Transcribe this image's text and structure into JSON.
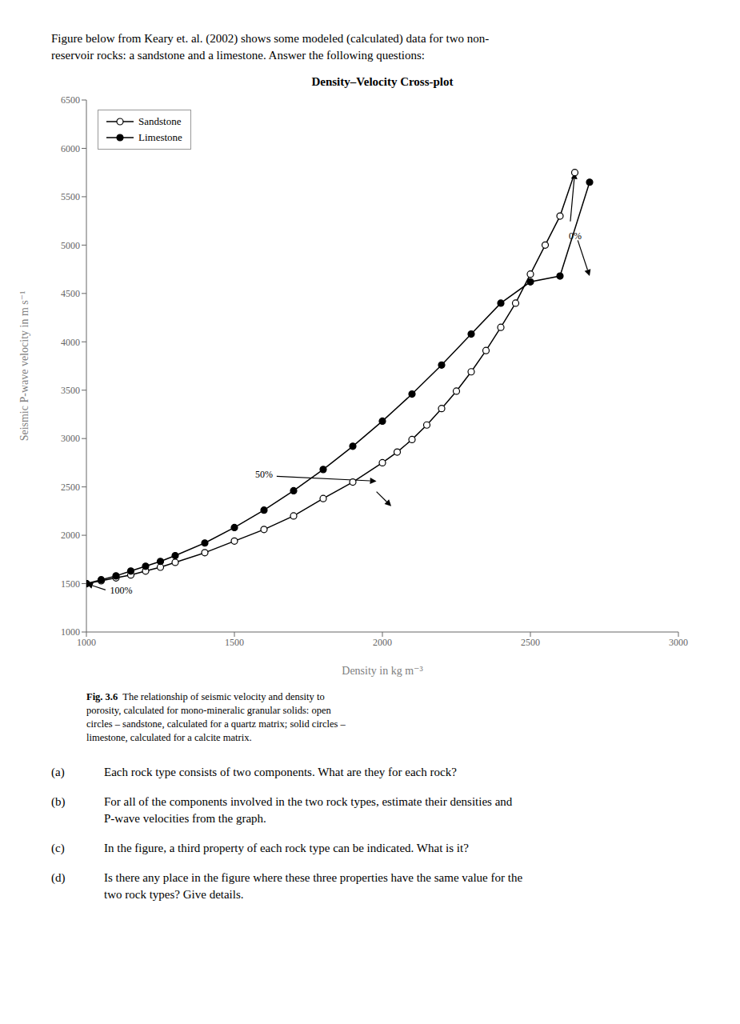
{
  "header_text": "Figure below from Keary et. al. (2002) shows some modeled (calculated) data for two non-\nreservoir rocks: a sandstone and a limestone. Answer the following questions:",
  "caption_bold": "Fig. 3.6",
  "caption": "  The relationship of seismic velocity and density to\nporosity, calculated for mono-mineralic granular solids: open\ncircles – sandstone, calculated for a quartz matrix; solid circles –\nlimestone, calculated for a calcite matrix.",
  "questions": [
    {
      "label": "(a)",
      "text": "Each rock type consists of two components. What are they for each rock?"
    },
    {
      "label": "(b)",
      "text": "For all of the components involved in the two rock types, estimate their densities and\nP-wave velocities from the graph."
    },
    {
      "label": "(c)",
      "text": "In the figure, a third property of each rock type can be indicated. What is it?"
    },
    {
      "label": "(d)",
      "text": "Is there any place in the figure where these three properties have the same value for the\ntwo rock types? Give details."
    }
  ],
  "chart_data": {
    "type": "line",
    "title": "Density–Velocity Cross-plot",
    "xlabel": "Density in kg m⁻³",
    "ylabel": "Seismic P-wave velocity in m s⁻¹",
    "xlim": [
      1000,
      3000
    ],
    "ylim": [
      1000,
      6500
    ],
    "xticks": [
      1000,
      1500,
      2000,
      2500,
      3000
    ],
    "yticks": [
      1000,
      1500,
      2000,
      2500,
      3000,
      3500,
      4000,
      4500,
      5000,
      5500,
      6000,
      6500
    ],
    "grid": false,
    "legend": "upper left",
    "series": [
      {
        "name": "Sandstone",
        "color": "#000000",
        "marker": "open_circle",
        "x": [
          1000,
          1050,
          1100,
          1150,
          1200,
          1250,
          1300,
          1400,
          1500,
          1600,
          1700,
          1800,
          1900,
          2000,
          2050,
          2100,
          2150,
          2200,
          2250,
          2300,
          2350,
          2400,
          2450,
          2500,
          2550,
          2600,
          2650
        ],
        "values": [
          1500,
          1530,
          1560,
          1590,
          1630,
          1670,
          1720,
          1820,
          1940,
          2060,
          2200,
          2380,
          2550,
          2750,
          2860,
          2990,
          3140,
          3310,
          3490,
          3690,
          3910,
          4150,
          4400,
          4700,
          5000,
          5300,
          5750
        ]
      },
      {
        "name": "Limestone",
        "color": "#000000",
        "marker": "filled_circle",
        "x": [
          1000,
          1050,
          1100,
          1150,
          1200,
          1250,
          1300,
          1400,
          1500,
          1600,
          1700,
          1800,
          1900,
          2000,
          2100,
          2200,
          2300,
          2400,
          2500,
          2600,
          2700
        ],
        "values": [
          1500,
          1540,
          1580,
          1630,
          1680,
          1730,
          1790,
          1920,
          2080,
          2260,
          2460,
          2680,
          2920,
          3180,
          3460,
          3760,
          4080,
          4400,
          4620,
          4680,
          5650
        ]
      }
    ],
    "annotations": [
      {
        "text": "0%",
        "x": 2630,
        "y": 5080,
        "arrows": [
          {
            "from": [
              2630,
              5080
            ],
            "to": [
              2650,
              5750
            ]
          },
          {
            "from": [
              2660,
              5050
            ],
            "to": [
              2700,
              4680
            ]
          }
        ]
      },
      {
        "text": "50%",
        "x": 1570,
        "y": 2620,
        "arrows": [
          {
            "from": [
              1570,
              2620
            ],
            "to": [
              1980,
              2560
            ]
          },
          {
            "from": [
              1980,
              2450
            ],
            "to": [
              2030,
              2300
            ]
          }
        ]
      },
      {
        "text": "100%",
        "x": 1080,
        "y": 1420,
        "arrows": [
          {
            "from": [
              1080,
              1420
            ],
            "to": [
              1000,
              1500
            ]
          }
        ]
      }
    ]
  }
}
